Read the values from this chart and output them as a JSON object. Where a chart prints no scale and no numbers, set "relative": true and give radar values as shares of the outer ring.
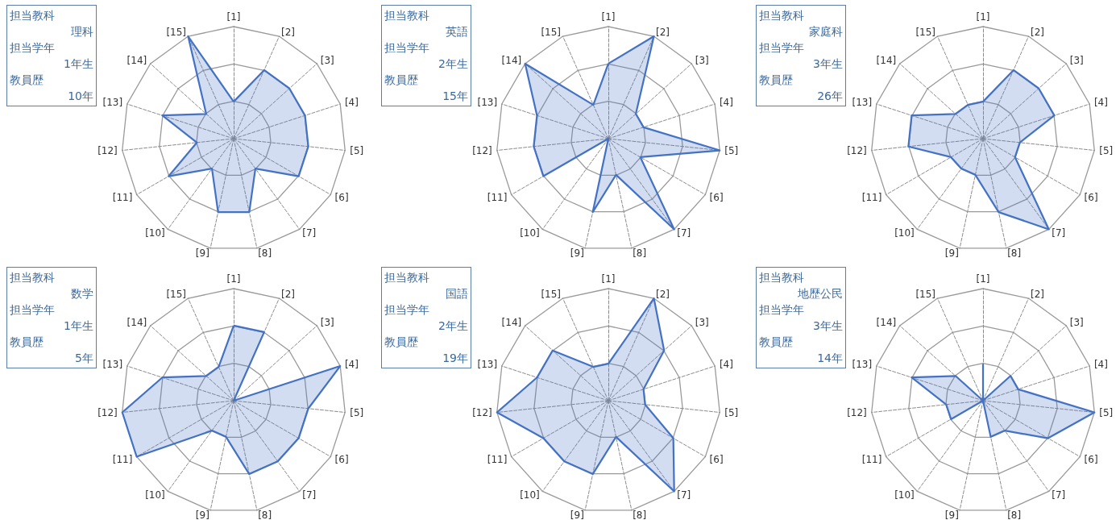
{
  "chart_data": [
    {
      "type": "radar",
      "relative": true,
      "marker": "none",
      "categories": [
        "[1]",
        "[2]",
        "[3]",
        "[4]",
        "[5]",
        "[6]",
        "[7]",
        "[8]",
        "[9]",
        "[10]",
        "[11]",
        "[12]",
        "[13]",
        "[14]",
        "[15]"
      ],
      "annotations": [
        "担当教科",
        "理科",
        "担当学年",
        "1年生",
        "教員歴",
        "10年"
      ],
      "series": [
        {
          "color": "#4472c4",
          "values": [
            0.33,
            0.67,
            0.67,
            0.67,
            0.67,
            0.67,
            0.33,
            0.67,
            0.67,
            0.33,
            0.67,
            0.33,
            0.67,
            0.33,
            1
          ]
        }
      ]
    },
    {
      "type": "radar",
      "relative": true,
      "marker": "none",
      "categories": [
        "[1]",
        "[2]",
        "[3]",
        "[4]",
        "[5]",
        "[6]",
        "[7]",
        "[8]",
        "[9]",
        "[10]",
        "[11]",
        "[12]",
        "[13]",
        "[14]",
        "[15]"
      ],
      "annotations": [
        "担当教科",
        "英語",
        "担当学年",
        "2年生",
        "教員歴",
        "15年"
      ],
      "series": [
        {
          "color": "#4472c4",
          "values": [
            0.67,
            1,
            0.33,
            0.33,
            1,
            0.33,
            1,
            0.33,
            0.67,
            0,
            0.67,
            0.67,
            0.67,
            1,
            0.33
          ]
        }
      ]
    },
    {
      "type": "radar",
      "relative": true,
      "marker": "none",
      "categories": [
        "[1]",
        "[2]",
        "[3]",
        "[4]",
        "[5]",
        "[6]",
        "[7]",
        "[8]",
        "[9]",
        "[10]",
        "[11]",
        "[12]",
        "[13]",
        "[14]",
        "[15]"
      ],
      "annotations": [
        "担当教科",
        "家庭科",
        "担当学年",
        "3年生",
        "教員歴",
        "26年"
      ],
      "series": [
        {
          "color": "#4472c4",
          "values": [
            0.33,
            0.67,
            0.67,
            0.67,
            0.33,
            0.33,
            1,
            0.67,
            0.33,
            0.33,
            0.33,
            0.67,
            0.67,
            0.33,
            0.33
          ]
        }
      ]
    },
    {
      "type": "radar",
      "relative": true,
      "marker": "none",
      "categories": [
        "[1]",
        "[2]",
        "[3]",
        "[4]",
        "[5]",
        "[6]",
        "[7]",
        "[8]",
        "[9]",
        "[10]",
        "[11]",
        "[12]",
        "[13]",
        "[14]",
        "[15]"
      ],
      "annotations": [
        "担当教科",
        "数学",
        "担当学年",
        "1年生",
        "教員歴",
        "5年"
      ],
      "series": [
        {
          "color": "#4472c4",
          "values": [
            0.67,
            0.67,
            0,
            1,
            0.67,
            0.67,
            0.67,
            0.67,
            0.33,
            0.33,
            1,
            1,
            0.67,
            0.33,
            0.33
          ]
        }
      ]
    },
    {
      "type": "radar",
      "relative": true,
      "marker": "none",
      "categories": [
        "[1]",
        "[2]",
        "[3]",
        "[4]",
        "[5]",
        "[6]",
        "[7]",
        "[8]",
        "[9]",
        "[10]",
        "[11]",
        "[12]",
        "[13]",
        "[14]",
        "[15]"
      ],
      "annotations": [
        "担当教科",
        "国語",
        "担当学年",
        "2年生",
        "教員歴",
        "19年"
      ],
      "series": [
        {
          "color": "#4472c4",
          "values": [
            0.33,
            1,
            0.67,
            0.33,
            0.33,
            0.67,
            1,
            0.33,
            0.67,
            0.67,
            0.67,
            1,
            0.67,
            0.67,
            0.33
          ]
        }
      ]
    },
    {
      "type": "radar",
      "relative": true,
      "marker": "none",
      "categories": [
        "[1]",
        "[2]",
        "[3]",
        "[4]",
        "[5]",
        "[6]",
        "[7]",
        "[8]",
        "[9]",
        "[10]",
        "[11]",
        "[12]",
        "[13]",
        "[14]",
        "[15]"
      ],
      "annotations": [
        "担当教科",
        "地歴公民",
        "担当学年",
        "3年生",
        "教員歴",
        "14年"
      ],
      "series": [
        {
          "color": "#4472c4",
          "values": [
            0.33,
            0,
            0.33,
            0.33,
            1,
            0.67,
            0.33,
            0.33,
            0,
            0,
            0.33,
            0.33,
            0.67,
            0.33,
            0
          ]
        }
      ]
    }
  ]
}
